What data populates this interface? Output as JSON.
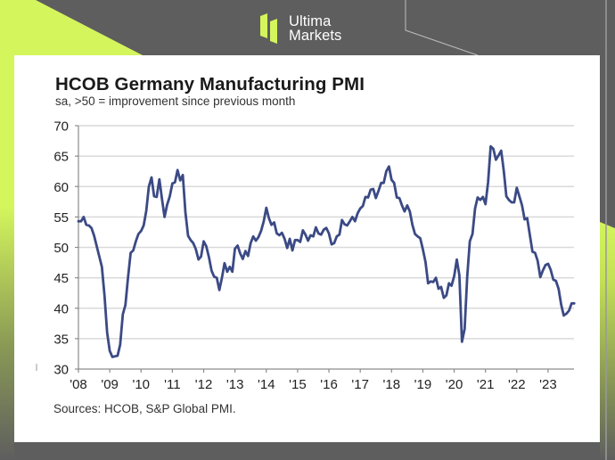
{
  "brand": {
    "name_line1": "Ultima",
    "name_line2": "Markets",
    "accent_color": "#d4f55c",
    "background_color": "#5e5e5e"
  },
  "chart_data": {
    "type": "line",
    "title": "HCOB Germany Manufacturing PMI",
    "subtitle": "sa, >50 = improvement since previous month",
    "source": "Sources: HCOB, S&P Global PMI.",
    "xlabel": "",
    "ylabel": "",
    "ylim": [
      30,
      70
    ],
    "yticks": [
      30,
      35,
      40,
      45,
      50,
      55,
      60,
      65,
      70
    ],
    "xticks": [
      "'08",
      "'09",
      "'10",
      "'11",
      "'12",
      "'13",
      "'14",
      "'15",
      "'16",
      "'17",
      "'18",
      "'19",
      "'20",
      "'21",
      "'22",
      "'23"
    ],
    "x_start": "2008-01",
    "x_frequency": "monthly",
    "grid": "horizontal",
    "legend": "none",
    "line_color": "#3b4a85",
    "series": [
      {
        "name": "HCOB Germany Manufacturing PMI",
        "values": [
          54.3,
          54.3,
          55.0,
          53.7,
          53.6,
          53.2,
          51.9,
          50.2,
          48.5,
          46.8,
          42.0,
          36.0,
          33.0,
          32.0,
          32.1,
          32.2,
          34.0,
          39.0,
          40.5,
          45.0,
          49.1,
          49.5,
          51.0,
          52.2,
          52.7,
          53.6,
          56.0,
          60.0,
          61.5,
          58.4,
          58.3,
          61.2,
          58.0,
          55.0,
          57.0,
          58.4,
          60.5,
          60.7,
          62.7,
          61.0,
          61.9,
          55.8,
          51.9,
          51.2,
          50.7,
          49.7,
          48.0,
          48.5,
          51.0,
          50.2,
          48.4,
          46.2,
          45.2,
          45.0,
          43.0,
          45.0,
          47.4,
          46.0,
          46.8,
          46.0,
          49.8,
          50.3,
          49.0,
          48.1,
          49.4,
          48.6,
          50.7,
          51.8,
          51.1,
          51.7,
          52.7,
          54.3,
          56.5,
          54.8,
          53.7,
          54.1,
          52.3,
          52.0,
          52.4,
          51.4,
          49.9,
          51.4,
          49.5,
          51.2,
          51.2,
          50.9,
          52.8,
          52.1,
          51.1,
          52.0,
          51.8,
          53.3,
          52.3,
          52.1,
          52.9,
          53.2,
          52.3,
          50.5,
          50.7,
          51.8,
          52.1,
          54.5,
          53.8,
          53.6,
          54.3,
          55.0,
          54.3,
          55.6,
          56.4,
          56.8,
          58.3,
          58.2,
          59.5,
          59.6,
          58.1,
          59.3,
          60.6,
          60.6,
          62.5,
          63.3,
          61.1,
          60.6,
          58.2,
          58.1,
          56.9,
          55.9,
          56.9,
          55.9,
          53.7,
          52.2,
          51.8,
          51.5,
          49.7,
          47.6,
          44.1,
          44.4,
          44.3,
          45.0,
          43.2,
          43.5,
          41.7,
          42.1,
          44.1,
          43.7,
          45.3,
          48.0,
          45.4,
          34.5,
          36.6,
          45.2,
          51.0,
          52.2,
          56.4,
          58.2,
          57.8,
          58.3,
          57.1,
          60.7,
          66.6,
          66.2,
          64.4,
          65.1,
          65.9,
          62.6,
          58.4,
          57.8,
          57.4,
          57.4,
          59.8,
          58.4,
          56.9,
          54.6,
          54.8,
          52.0,
          49.3,
          49.1,
          47.8,
          45.1,
          46.2,
          47.1,
          47.3,
          46.3,
          44.7,
          44.5,
          43.2,
          40.6,
          38.8,
          39.1,
          39.6,
          40.8,
          40.8
        ]
      }
    ]
  }
}
